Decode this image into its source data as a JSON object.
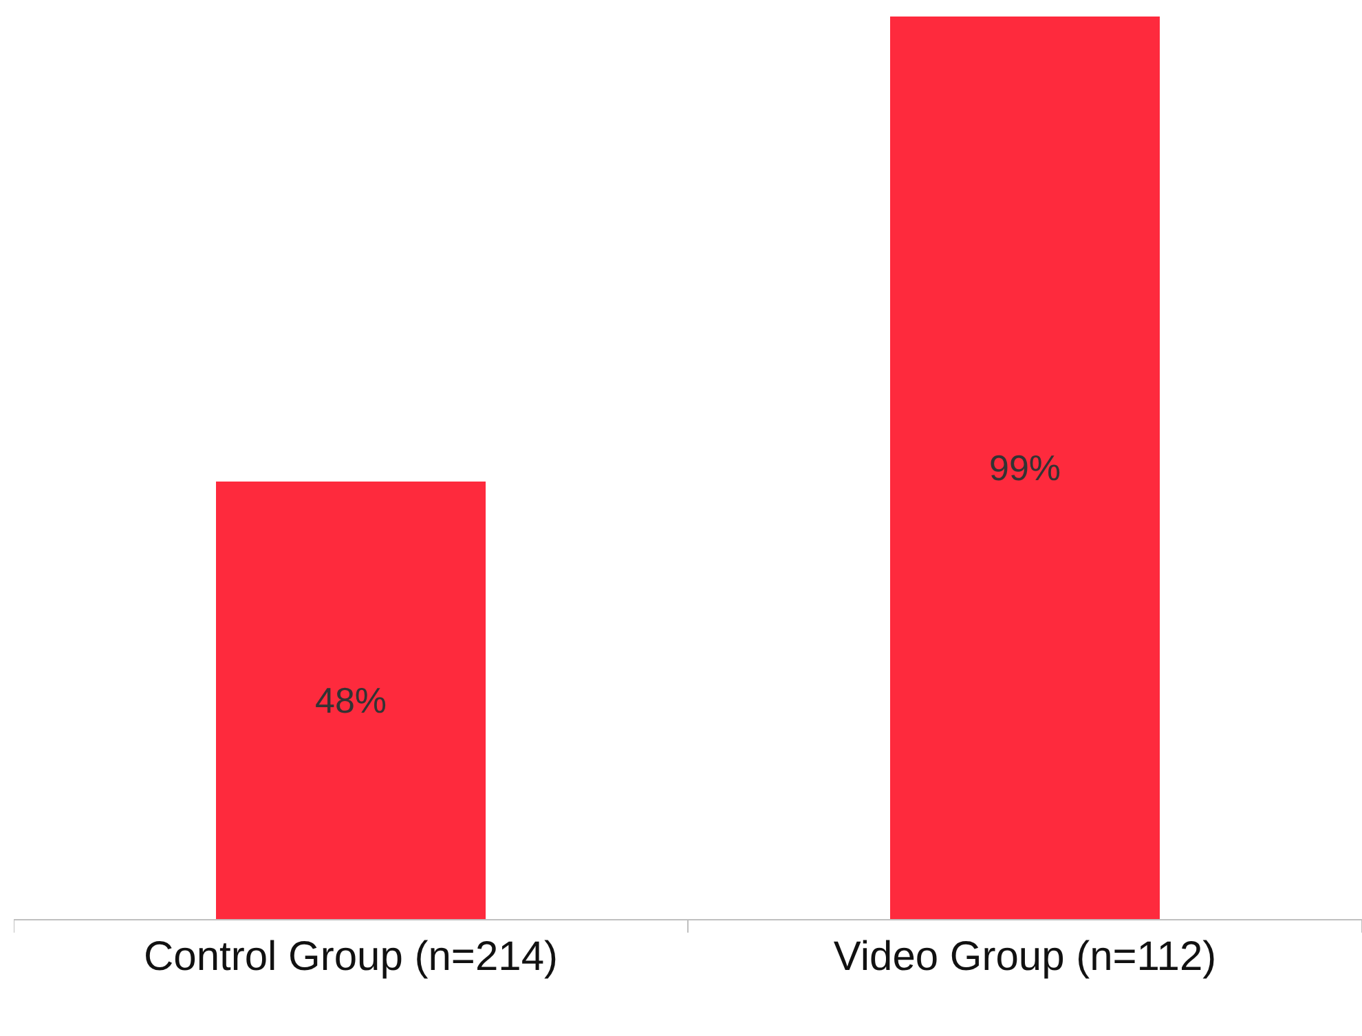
{
  "chart_data": {
    "type": "bar",
    "relative": false,
    "categories": [
      "Control Group (n=214)",
      "Video Group (n=112)"
    ],
    "values": [
      48,
      99
    ],
    "value_labels": [
      "48%",
      "99%"
    ],
    "color": "#fe2a3d"
  }
}
